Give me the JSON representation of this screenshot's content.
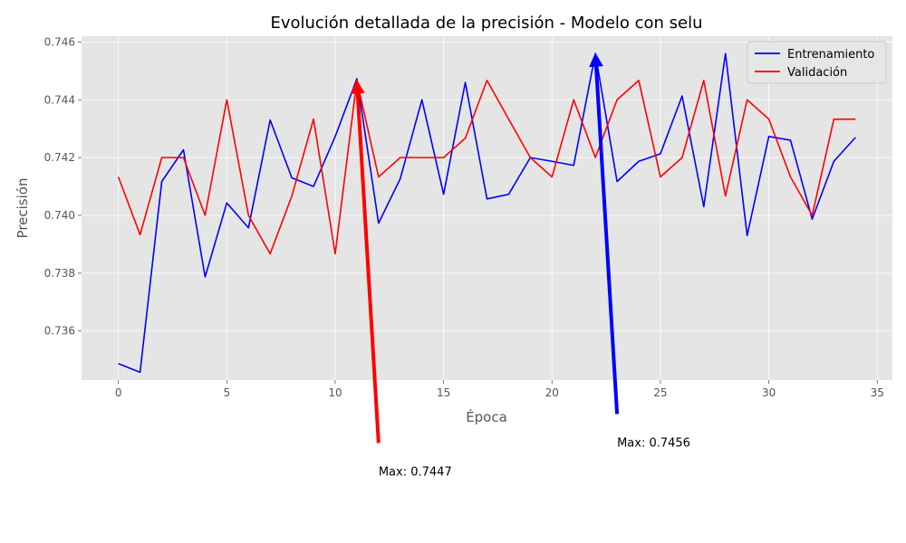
{
  "chart_data": {
    "type": "line",
    "title": "Evolución detallada de la precisión - Modelo con selu",
    "xlabel": "Época",
    "ylabel": "Precisión",
    "xlim": [
      -1.7,
      35.7
    ],
    "ylim": [
      0.7343,
      0.7462
    ],
    "xticks": [
      0,
      5,
      10,
      15,
      20,
      25,
      30,
      35
    ],
    "yticks": [
      0.736,
      0.738,
      0.74,
      0.742,
      0.744,
      0.746
    ],
    "ytick_format": 3,
    "grid": true,
    "legend_position": "top-right",
    "x": [
      0,
      1,
      2,
      3,
      4,
      5,
      6,
      7,
      8,
      9,
      10,
      11,
      12,
      13,
      14,
      15,
      16,
      17,
      18,
      19,
      20,
      21,
      22,
      23,
      24,
      25,
      26,
      27,
      28,
      29,
      30,
      31,
      32,
      33,
      34
    ],
    "series": [
      {
        "name": "Entrenamiento",
        "color": "#0000ff",
        "values": [
          0.73487,
          0.73457,
          0.74117,
          0.74227,
          0.73787,
          0.74043,
          0.73957,
          0.7433,
          0.7413,
          0.741,
          0.74273,
          0.74473,
          0.73973,
          0.74127,
          0.744,
          0.74073,
          0.7446,
          0.74057,
          0.74073,
          0.742,
          0.74187,
          0.74173,
          0.7456,
          0.74117,
          0.74187,
          0.74213,
          0.74413,
          0.7403,
          0.7456,
          0.7393,
          0.74273,
          0.7426,
          0.73987,
          0.74187,
          0.7427
        ]
      },
      {
        "name": "Validación",
        "color": "#ff0000",
        "values": [
          0.74133,
          0.73933,
          0.742,
          0.742,
          0.74,
          0.744,
          0.74,
          0.73867,
          0.74067,
          0.74333,
          0.73867,
          0.74467,
          0.74133,
          0.742,
          0.742,
          0.742,
          0.74267,
          0.74467,
          0.74333,
          0.742,
          0.74133,
          0.744,
          0.742,
          0.744,
          0.74467,
          0.74133,
          0.742,
          0.74467,
          0.74067,
          0.744,
          0.74333,
          0.74133,
          0.74,
          0.74333,
          0.74333
        ]
      }
    ],
    "annotations": [
      {
        "text": "Max: 0.7447",
        "color": "#ff0000",
        "point": [
          11,
          0.74467
        ],
        "text_at": [
          12,
          0.732
        ]
      },
      {
        "text": "Max: 0.7456",
        "color": "#0000ff",
        "point": [
          22,
          0.7456
        ],
        "text_at": [
          23,
          0.733
        ]
      }
    ]
  }
}
